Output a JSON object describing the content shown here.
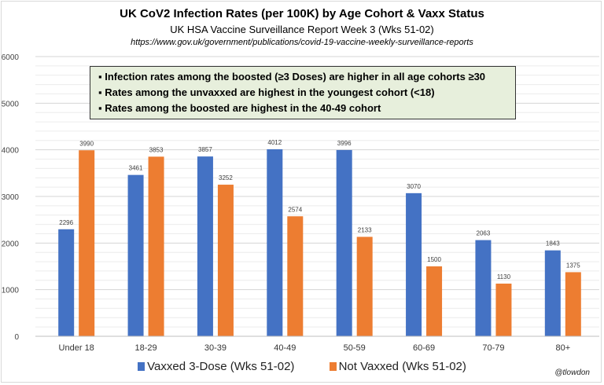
{
  "chart_data": {
    "type": "bar",
    "title": "UK CoV2 Infection Rates (per 100K) by Age Cohort & Vaxx Status",
    "subtitle": "UK HSA Vaccine Surveillance Report Week 3 (Wks 51-02)",
    "source_text": "https://www.gov.uk/government/publications/covid-19-vaccine-weekly-surveillance-reports",
    "xlabel": "",
    "ylabel": "",
    "ylim": [
      0,
      6000
    ],
    "yticks": [
      0,
      1000,
      2000,
      3000,
      4000,
      5000,
      6000
    ],
    "grid": true,
    "legend_position": "bottom",
    "categories": [
      "Under 18",
      "18-29",
      "30-39",
      "40-49",
      "50-59",
      "60-69",
      "70-79",
      "80+"
    ],
    "series": [
      {
        "name": "Vaxxed 3-Dose (Wks 51-02)",
        "color": "#4472c4",
        "values": [
          2296,
          3461,
          3857,
          4012,
          3996,
          3070,
          2063,
          1843
        ]
      },
      {
        "name": "Not Vaxxed (Wks 51-02)",
        "color": "#ed7d31",
        "values": [
          3990,
          3853,
          3252,
          2574,
          2133,
          1500,
          1130,
          1375
        ]
      }
    ],
    "annotations": [
      "▪ Infection rates among the boosted (≥3 Doses) are higher in all age cohorts ≥30",
      "▪ Rates among the unvaxxed are highest in the youngest cohort (<18)",
      "▪ Rates among the boosted are highest in the 40-49 cohort"
    ],
    "credit": "@tlowdon"
  }
}
